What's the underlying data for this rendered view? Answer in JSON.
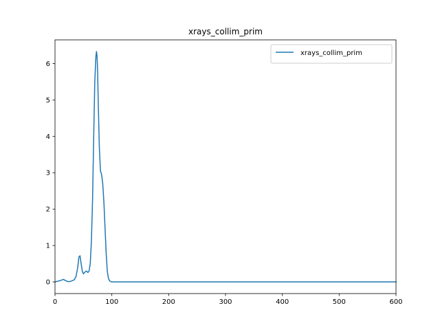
{
  "chart_data": {
    "type": "line",
    "title": "xrays_collim_prim",
    "xlabel": "",
    "ylabel": "",
    "xlim": [
      0,
      600
    ],
    "ylim": [
      -0.32,
      6.65
    ],
    "x_ticks": [
      0,
      100,
      200,
      300,
      400,
      500,
      600
    ],
    "y_ticks": [
      0,
      1,
      2,
      3,
      4,
      5,
      6
    ],
    "grid": false,
    "legend": "top-right",
    "series": [
      {
        "name": "xrays_collim_prim",
        "color": "#1f77b4",
        "x": [
          0,
          5,
          10,
          15,
          18,
          22,
          26,
          30,
          34,
          37,
          40,
          42,
          44,
          46,
          48,
          50,
          52,
          55,
          58,
          60,
          62,
          64,
          66,
          68,
          70,
          72,
          73,
          74,
          75,
          76,
          78,
          80,
          82,
          84,
          86,
          88,
          90,
          92,
          94,
          96,
          98,
          100,
          105,
          110,
          120,
          150,
          200,
          300,
          400,
          500,
          600
        ],
        "y": [
          0.0,
          0.02,
          0.04,
          0.07,
          0.04,
          0.01,
          0.01,
          0.03,
          0.06,
          0.15,
          0.4,
          0.68,
          0.72,
          0.5,
          0.3,
          0.22,
          0.26,
          0.3,
          0.26,
          0.3,
          0.5,
          1.1,
          2.2,
          3.9,
          5.5,
          6.2,
          6.33,
          6.2,
          5.8,
          5.0,
          3.7,
          3.05,
          2.95,
          2.7,
          2.2,
          1.5,
          0.8,
          0.3,
          0.1,
          0.03,
          0.01,
          0.0,
          0.0,
          0.0,
          0.0,
          0.0,
          0.0,
          0.0,
          0.0,
          0.0,
          0.0
        ]
      }
    ]
  }
}
